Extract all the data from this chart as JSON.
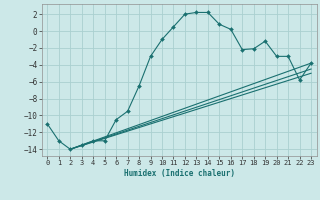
{
  "xlabel": "Humidex (Indice chaleur)",
  "bg_color": "#cce8e8",
  "grid_color": "#aad0d0",
  "line_color": "#1a7070",
  "xlim": [
    -0.5,
    23.5
  ],
  "ylim": [
    -14.8,
    3.2
  ],
  "xticks": [
    0,
    1,
    2,
    3,
    4,
    5,
    6,
    7,
    8,
    9,
    10,
    11,
    12,
    13,
    14,
    15,
    16,
    17,
    18,
    19,
    20,
    21,
    22,
    23
  ],
  "yticks": [
    2,
    0,
    -2,
    -4,
    -6,
    -8,
    -10,
    -12,
    -14
  ],
  "series1_x": [
    0,
    1,
    2,
    3,
    4,
    5,
    6,
    7,
    8,
    9,
    10,
    11,
    12,
    13,
    14,
    15,
    16,
    17,
    18,
    19,
    20,
    21,
    22,
    23
  ],
  "series1_y": [
    -11,
    -13,
    -14,
    -13.5,
    -13,
    -13,
    -10.5,
    -9.5,
    -6.5,
    -3,
    -1,
    0.5,
    2,
    2.2,
    2.2,
    0.8,
    0.2,
    -2.2,
    -2.1,
    -1.2,
    -3.0,
    -3.0,
    -5.8,
    -3.8
  ],
  "series2_x": [
    2,
    23
  ],
  "series2_y": [
    -14,
    -3.8
  ],
  "series3_x": [
    2,
    23
  ],
  "series3_y": [
    -14,
    -5.0
  ],
  "series4_x": [
    2,
    23
  ],
  "series4_y": [
    -14,
    -4.5
  ]
}
